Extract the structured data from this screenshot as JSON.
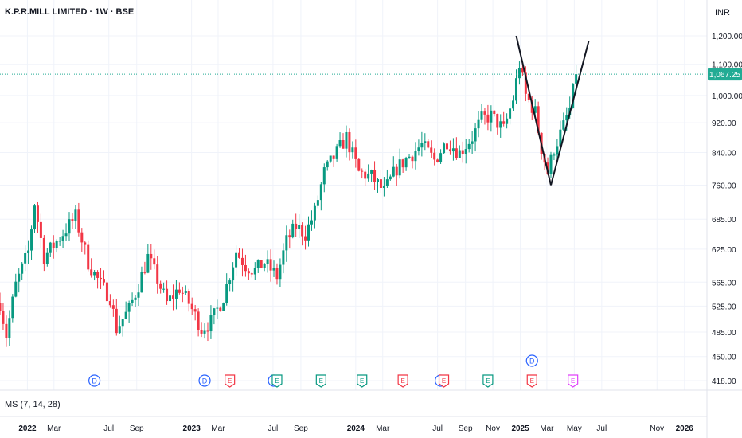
{
  "header": {
    "title": "K.P.R.MILL LIMITED · 1W · BSE",
    "currency": "INR"
  },
  "indicator": {
    "label": "MS (7, 14, 28)"
  },
  "colors": {
    "up": "#089981",
    "down": "#f23645",
    "price_line": "#22ab94",
    "grid": "#f0f3fa",
    "pattern": "#131722"
  },
  "chart_data": {
    "type": "candlestick",
    "title": "K.P.R.MILL LIMITED · 1W · BSE",
    "currency": "INR",
    "y_scale": "log",
    "ylim": [
      400,
      1300
    ],
    "y_ticks": [
      418,
      450,
      485,
      525,
      565,
      625,
      685,
      760,
      840,
      920,
      1000,
      1100,
      1200
    ],
    "y_tick_labels": [
      "418.00",
      "450.00",
      "485.00",
      "525.00",
      "565.00",
      "625.00",
      "685.00",
      "760.00",
      "840.00",
      "920.00",
      "1,000.00",
      "1,100.00",
      "1,200.00"
    ],
    "x_ticks": [
      "2022",
      "Mar",
      "Jul",
      "Sep",
      "2023",
      "Mar",
      "Jul",
      "Sep",
      "2024",
      "Mar",
      "Jul",
      "Sep",
      "Nov",
      "2025",
      "Mar",
      "May",
      "Jul",
      "Nov",
      "2026"
    ],
    "x_tick_dates": [
      "2022-01-01",
      "2022-03-01",
      "2022-07-01",
      "2022-09-01",
      "2023-01-01",
      "2023-03-01",
      "2023-07-01",
      "2023-09-01",
      "2024-01-01",
      "2024-03-01",
      "2024-07-01",
      "2024-09-01",
      "2024-11-01",
      "2025-01-01",
      "2025-03-01",
      "2025-05-01",
      "2025-07-01",
      "2025-11-01",
      "2026-01-01"
    ],
    "last_price": 1067.25,
    "last_price_label": "1,067.25",
    "anchors": [
      [
        "2021-11-01",
        530
      ],
      [
        "2021-11-15",
        480
      ],
      [
        "2021-12-06",
        560
      ],
      [
        "2022-01-03",
        620
      ],
      [
        "2022-01-17",
        720
      ],
      [
        "2022-02-07",
        610
      ],
      [
        "2022-03-07",
        640
      ],
      [
        "2022-04-18",
        690
      ],
      [
        "2022-05-16",
        600
      ],
      [
        "2022-06-13",
        560
      ],
      [
        "2022-07-04",
        540
      ],
      [
        "2022-07-18",
        490
      ],
      [
        "2022-08-15",
        520
      ],
      [
        "2022-09-05",
        560
      ],
      [
        "2022-09-26",
        610
      ],
      [
        "2022-10-17",
        570
      ],
      [
        "2022-11-07",
        530
      ],
      [
        "2022-12-05",
        555
      ],
      [
        "2022-12-26",
        530
      ],
      [
        "2023-01-23",
        490
      ],
      [
        "2023-02-13",
        500
      ],
      [
        "2023-03-13",
        540
      ],
      [
        "2023-04-10",
        620
      ],
      [
        "2023-05-01",
        595
      ],
      [
        "2023-05-22",
        585
      ],
      [
        "2023-06-12",
        600
      ],
      [
        "2023-07-10",
        575
      ],
      [
        "2023-07-31",
        640
      ],
      [
        "2023-08-21",
        670
      ],
      [
        "2023-09-11",
        655
      ],
      [
        "2023-10-02",
        700
      ],
      [
        "2023-10-23",
        790
      ],
      [
        "2023-11-20",
        840
      ],
      [
        "2023-12-11",
        880
      ],
      [
        "2024-01-08",
        790
      ],
      [
        "2024-02-05",
        780
      ],
      [
        "2024-03-04",
        745
      ],
      [
        "2024-04-01",
        800
      ],
      [
        "2024-04-29",
        830
      ],
      [
        "2024-05-27",
        860
      ],
      [
        "2024-06-24",
        820
      ],
      [
        "2024-07-22",
        870
      ],
      [
        "2024-08-19",
        840
      ],
      [
        "2024-09-16",
        880
      ],
      [
        "2024-10-07",
        930
      ],
      [
        "2024-10-28",
        940
      ],
      [
        "2024-11-25",
        900
      ],
      [
        "2024-12-16",
        990
      ],
      [
        "2024-12-30",
        1100
      ],
      [
        "2025-01-13",
        1000
      ],
      [
        "2025-02-03",
        950
      ],
      [
        "2025-02-17",
        850
      ],
      [
        "2025-03-03",
        790
      ],
      [
        "2025-03-17",
        850
      ],
      [
        "2025-04-07",
        910
      ],
      [
        "2025-04-21",
        960
      ],
      [
        "2025-05-05",
        1067.25
      ]
    ],
    "pattern_lines": [
      {
        "from": [
          "2024-12-23",
          1200
        ],
        "to": [
          "2025-03-10",
          760
        ]
      },
      {
        "from": [
          "2025-03-10",
          760
        ],
        "to": [
          "2025-06-02",
          1180
        ]
      }
    ],
    "events": [
      {
        "type": "D",
        "date": "2022-05-30"
      },
      {
        "type": "D",
        "date": "2023-01-30"
      },
      {
        "type": "E",
        "date": "2023-03-27"
      },
      {
        "type": "D",
        "date": "2023-07-03"
      },
      {
        "type": "E",
        "date": "2023-07-10"
      },
      {
        "type": "E",
        "date": "2023-10-16"
      },
      {
        "type": "E",
        "date": "2024-01-15"
      },
      {
        "type": "E",
        "date": "2024-04-15"
      },
      {
        "type": "D",
        "date": "2024-07-08"
      },
      {
        "type": "E",
        "date": "2024-07-15"
      },
      {
        "type": "E",
        "date": "2024-10-21"
      },
      {
        "type": "D",
        "date": "2025-01-27",
        "level": 2
      },
      {
        "type": "E",
        "date": "2025-01-27"
      },
      {
        "type": "E",
        "date": "2025-04-28"
      }
    ]
  }
}
